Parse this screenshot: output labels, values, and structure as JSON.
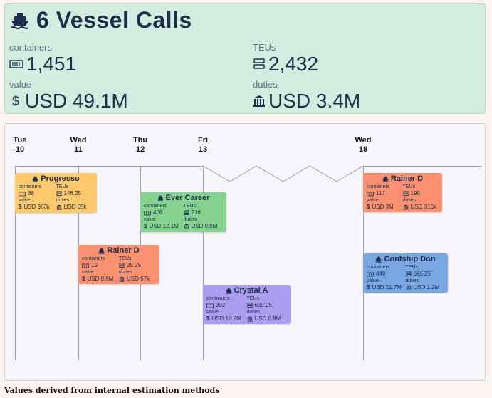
{
  "summary": {
    "title": "6 Vessel Calls",
    "containers_label": "containers",
    "containers_value": "1,451",
    "teus_label": "TEUs",
    "teus_value": "2,432",
    "value_label": "value",
    "value_value": "USD 49.1M",
    "duties_label": "duties",
    "duties_value": "USD 3.4M"
  },
  "days": [
    {
      "weekday": "Tue",
      "date": "10"
    },
    {
      "weekday": "Wed",
      "date": "11"
    },
    {
      "weekday": "Thu",
      "date": "12"
    },
    {
      "weekday": "Fri",
      "date": "13"
    },
    {
      "weekday": "Wed",
      "date": "18"
    }
  ],
  "field_labels": {
    "containers": "containers",
    "teus": "TEUs",
    "value": "value",
    "duties": "duties"
  },
  "calls": [
    {
      "vessel": "Progresso",
      "containers": "68",
      "teus": "146.25",
      "value": "USD 963k",
      "duties": "USD 65k"
    },
    {
      "vessel": "Ever Career",
      "containers": "406",
      "teus": "716",
      "value": "USD 12.1M",
      "duties": "USD 0.9M"
    },
    {
      "vessel": "Rainer D",
      "containers": "19",
      "teus": "35.25",
      "value": "USD 0.9M",
      "duties": "USD 57k"
    },
    {
      "vessel": "Crystal A",
      "containers": "392",
      "teus": "639.25",
      "value": "USD 10.5M",
      "duties": "USD 0.9M"
    },
    {
      "vessel": "Rainer D",
      "containers": "117",
      "teus": "199",
      "value": "USD 3M",
      "duties": "USD 316k"
    },
    {
      "vessel": "Contship Don",
      "containers": "449",
      "teus": "696.25",
      "value": "USD 21.7M",
      "duties": "USD 1.2M"
    }
  ],
  "colors": {
    "progresso": "#fec86c",
    "ever_career": "#87d28e",
    "rainer_d": "#fb9171",
    "crystal_a": "#ad9df0",
    "contship_don": "#79a7e4",
    "summary_bg": "#d2ede0"
  },
  "footnote": "Values derived from internal estimation methods"
}
